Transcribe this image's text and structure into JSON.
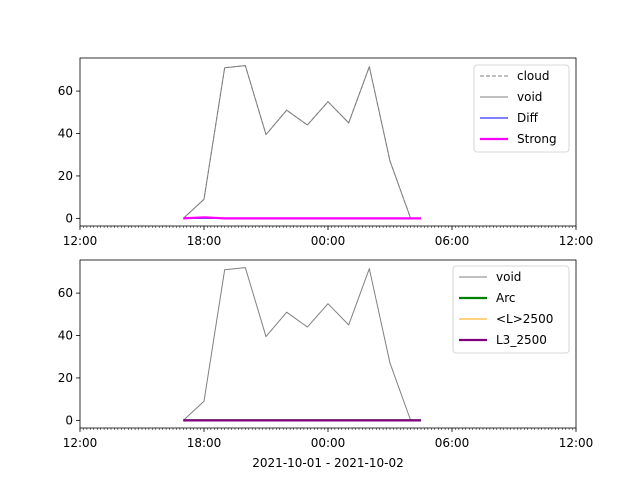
{
  "chart_data": [
    {
      "type": "line",
      "x_ticks": [
        "12:00",
        "18:00",
        "00:00",
        "06:00",
        "12:00"
      ],
      "y_ticks": [
        0,
        20,
        40,
        60
      ],
      "xlim_hours": [
        12,
        36
      ],
      "ylim": [
        -3.6,
        75.6
      ],
      "legend_position": "top-right",
      "x": [
        "2021-10-01 17:00",
        "2021-10-01 18:00",
        "2021-10-01 19:00",
        "2021-10-01 20:00",
        "2021-10-01 21:00",
        "2021-10-01 22:00",
        "2021-10-01 23:00",
        "2021-10-02 00:00",
        "2021-10-02 01:00",
        "2021-10-02 02:00",
        "2021-10-02 03:00",
        "2021-10-02 04:00",
        "2021-10-02 04:30"
      ],
      "series": [
        {
          "name": "cloud",
          "color": "#808080",
          "style": "dashed",
          "values": [
            0,
            9,
            71,
            72,
            39.5,
            51,
            44,
            55,
            45,
            71.5,
            27,
            0,
            0
          ]
        },
        {
          "name": "void",
          "color": "#808080",
          "style": "solid",
          "values": [
            0,
            9,
            71,
            72,
            39.5,
            51,
            44,
            55,
            45,
            71.5,
            27,
            0,
            0
          ]
        },
        {
          "name": "Diff",
          "color": "#0000ff",
          "style": "solid",
          "values": [
            0,
            0,
            0,
            0,
            0,
            0,
            0,
            0,
            0,
            0,
            0,
            0,
            0
          ]
        },
        {
          "name": "Strong",
          "color": "#ff00ff",
          "style": "thick",
          "values": [
            0,
            0.5,
            0,
            0,
            0,
            0,
            0,
            0,
            0,
            0,
            0,
            0,
            0
          ]
        }
      ]
    },
    {
      "type": "line",
      "x_ticks": [
        "12:00",
        "18:00",
        "00:00",
        "06:00",
        "12:00"
      ],
      "y_ticks": [
        0,
        20,
        40,
        60
      ],
      "xlim_hours": [
        12,
        36
      ],
      "ylim": [
        -3.6,
        75.6
      ],
      "legend_position": "top-right",
      "xlabel": "2021-10-01 - 2021-10-02",
      "x": [
        "2021-10-01 17:00",
        "2021-10-01 18:00",
        "2021-10-01 19:00",
        "2021-10-01 20:00",
        "2021-10-01 21:00",
        "2021-10-01 22:00",
        "2021-10-01 23:00",
        "2021-10-02 00:00",
        "2021-10-02 01:00",
        "2021-10-02 02:00",
        "2021-10-02 03:00",
        "2021-10-02 04:00",
        "2021-10-02 04:30"
      ],
      "series": [
        {
          "name": "void",
          "color": "#808080",
          "style": "solid",
          "values": [
            0,
            9,
            71,
            72,
            39.5,
            51,
            44,
            55,
            45,
            71.5,
            27,
            0,
            0
          ]
        },
        {
          "name": "Arc",
          "color": "#008000",
          "style": "thick",
          "values": [
            0,
            0,
            0,
            0,
            0,
            0,
            0,
            0,
            0,
            0,
            0,
            0,
            0
          ]
        },
        {
          "name": "<L>2500",
          "color": "#ffa500",
          "style": "solid",
          "values": [
            0,
            0,
            0,
            0,
            0,
            0,
            0,
            0,
            0,
            0,
            0,
            0,
            0
          ]
        },
        {
          "name": "L3_2500",
          "color": "#800080",
          "style": "thick",
          "values": [
            0,
            0,
            0,
            0,
            0,
            0,
            0,
            0,
            0,
            0,
            0,
            0,
            0
          ]
        }
      ]
    }
  ]
}
